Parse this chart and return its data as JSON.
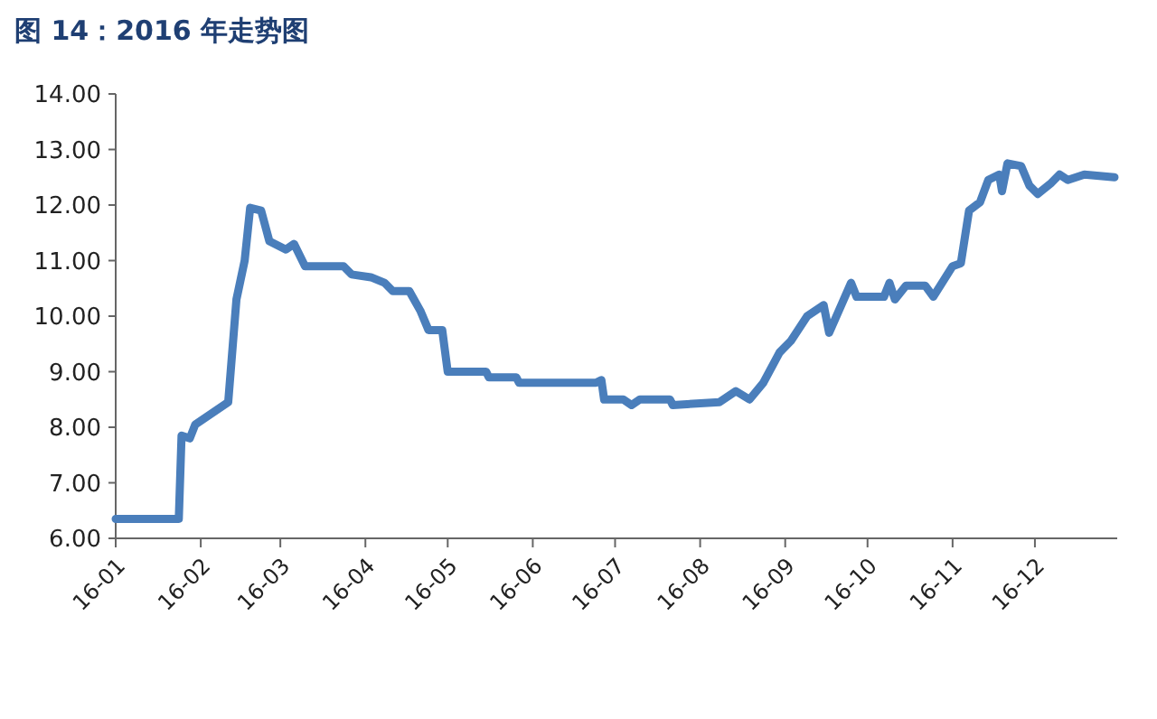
{
  "chart_data": {
    "type": "line",
    "title": "图 14：2016 年走势图",
    "line_style": "solid",
    "marker": "none",
    "grid": false,
    "xlim": [
      "2016-01-01",
      "2016-12-31"
    ],
    "xticks": [
      {
        "value": "2016-01-01",
        "label": "16-01"
      },
      {
        "value": "2016-02-01",
        "label": "16-02"
      },
      {
        "value": "2016-03-01",
        "label": "16-03"
      },
      {
        "value": "2016-04-01",
        "label": "16-04"
      },
      {
        "value": "2016-05-01",
        "label": "16-05"
      },
      {
        "value": "2016-06-01",
        "label": "16-06"
      },
      {
        "value": "2016-07-01",
        "label": "16-07"
      },
      {
        "value": "2016-08-01",
        "label": "16-08"
      },
      {
        "value": "2016-09-01",
        "label": "16-09"
      },
      {
        "value": "2016-10-01",
        "label": "16-10"
      },
      {
        "value": "2016-11-01",
        "label": "16-11"
      },
      {
        "value": "2016-12-01",
        "label": "16-12"
      }
    ],
    "ylim": [
      6,
      14
    ],
    "yticks": [
      {
        "value": 6,
        "label": "6.00"
      },
      {
        "value": 7,
        "label": "7.00"
      },
      {
        "value": 8,
        "label": "8.00"
      },
      {
        "value": 9,
        "label": "9.00"
      },
      {
        "value": 10,
        "label": "10.00"
      },
      {
        "value": 11,
        "label": "11.00"
      },
      {
        "value": 12,
        "label": "12.00"
      },
      {
        "value": 13,
        "label": "13.00"
      },
      {
        "value": 14,
        "label": "14.00"
      }
    ],
    "series": [
      {
        "color": "#4a7ebb",
        "x": [
          "2016-01-01",
          "2016-01-24",
          "2016-01-25",
          "2016-01-28",
          "2016-01-30",
          "2016-02-11",
          "2016-02-14",
          "2016-02-17",
          "2016-02-19",
          "2016-02-23",
          "2016-02-26",
          "2016-03-03",
          "2016-03-06",
          "2016-03-10",
          "2016-03-24",
          "2016-03-27",
          "2016-04-03",
          "2016-04-08",
          "2016-04-11",
          "2016-04-17",
          "2016-04-21",
          "2016-04-24",
          "2016-04-29",
          "2016-05-01",
          "2016-05-15",
          "2016-05-16",
          "2016-05-26",
          "2016-05-27",
          "2016-06-24",
          "2016-06-26",
          "2016-06-27",
          "2016-07-04",
          "2016-07-07",
          "2016-07-10",
          "2016-07-21",
          "2016-07-22",
          "2016-08-08",
          "2016-08-14",
          "2016-08-19",
          "2016-08-24",
          "2016-08-30",
          "2016-09-03",
          "2016-09-09",
          "2016-09-15",
          "2016-09-17",
          "2016-09-25",
          "2016-09-27",
          "2016-10-07",
          "2016-10-09",
          "2016-10-11",
          "2016-10-15",
          "2016-10-22",
          "2016-10-25",
          "2016-11-01",
          "2016-11-04",
          "2016-11-07",
          "2016-11-11",
          "2016-11-14",
          "2016-11-18",
          "2016-11-19",
          "2016-11-21",
          "2016-11-26",
          "2016-11-29",
          "2016-12-02",
          "2016-12-07",
          "2016-12-10",
          "2016-12-13",
          "2016-12-19",
          "2016-12-30"
        ],
        "values": [
          6.35,
          6.35,
          7.85,
          7.8,
          8.05,
          8.45,
          10.3,
          11.0,
          11.95,
          11.9,
          11.35,
          11.2,
          11.3,
          10.9,
          10.9,
          10.75,
          10.7,
          10.6,
          10.45,
          10.45,
          10.1,
          9.75,
          9.75,
          9.0,
          9.0,
          8.9,
          8.9,
          8.8,
          8.8,
          8.85,
          8.5,
          8.5,
          8.4,
          8.5,
          8.5,
          8.4,
          8.45,
          8.65,
          8.5,
          8.8,
          9.35,
          9.55,
          10.0,
          10.2,
          9.7,
          10.6,
          10.35,
          10.35,
          10.6,
          10.3,
          10.55,
          10.55,
          10.35,
          10.9,
          10.95,
          11.9,
          12.05,
          12.45,
          12.55,
          12.25,
          12.75,
          12.7,
          12.35,
          12.2,
          12.4,
          12.55,
          12.45,
          12.55,
          12.5
        ]
      }
    ]
  }
}
